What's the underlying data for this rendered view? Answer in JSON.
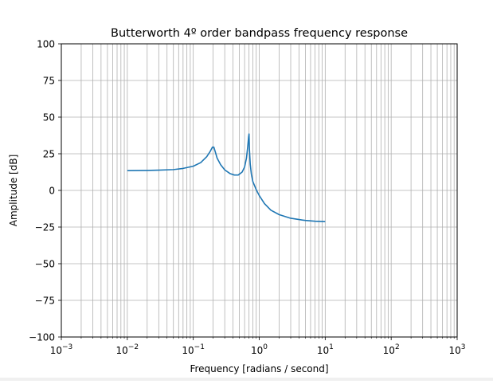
{
  "chart_data": {
    "type": "line",
    "title": "Butterworth 4º order bandpass frequency response",
    "xlabel": "Frequency [radians / second]",
    "ylabel": "Amplitude [dB]",
    "xscale": "log",
    "xlim": [
      0.001,
      1000
    ],
    "ylim": [
      -100,
      100
    ],
    "grid": "both (major and minor)",
    "x_ticks": [
      {
        "base": "10",
        "exp": "−3"
      },
      {
        "base": "10",
        "exp": "−2"
      },
      {
        "base": "10",
        "exp": "−1"
      },
      {
        "base": "10",
        "exp": "0"
      },
      {
        "base": "10",
        "exp": "1"
      },
      {
        "base": "10",
        "exp": "2"
      },
      {
        "base": "10",
        "exp": "3"
      }
    ],
    "y_ticks": [
      "100",
      "75",
      "50",
      "25",
      "0",
      "−25",
      "−50",
      "−75",
      "−100"
    ],
    "series": [
      {
        "color": "#1f77b4",
        "x": [
          0.01,
          0.02,
          0.03,
          0.05,
          0.07,
          0.1,
          0.13,
          0.16,
          0.18,
          0.195,
          0.205,
          0.215,
          0.23,
          0.26,
          0.3,
          0.36,
          0.42,
          0.48,
          0.55,
          0.6,
          0.64,
          0.67,
          0.69,
          0.7,
          0.71,
          0.73,
          0.76,
          0.8,
          0.9,
          1.0,
          1.2,
          1.5,
          2,
          3,
          5,
          7,
          10
        ],
        "y": [
          13.5,
          13.6,
          13.8,
          14.2,
          15.0,
          16.5,
          19.0,
          23.0,
          26.5,
          29.5,
          29.5,
          26.5,
          22.0,
          17.5,
          14.0,
          11.5,
          10.5,
          10.5,
          12.5,
          16.0,
          22.0,
          30.0,
          36.5,
          38.5,
          28.0,
          18.0,
          11.0,
          6.0,
          0.5,
          -3.5,
          -9.0,
          -13.5,
          -16.5,
          -19.0,
          -20.5,
          -21.0,
          -21.3
        ]
      }
    ]
  }
}
